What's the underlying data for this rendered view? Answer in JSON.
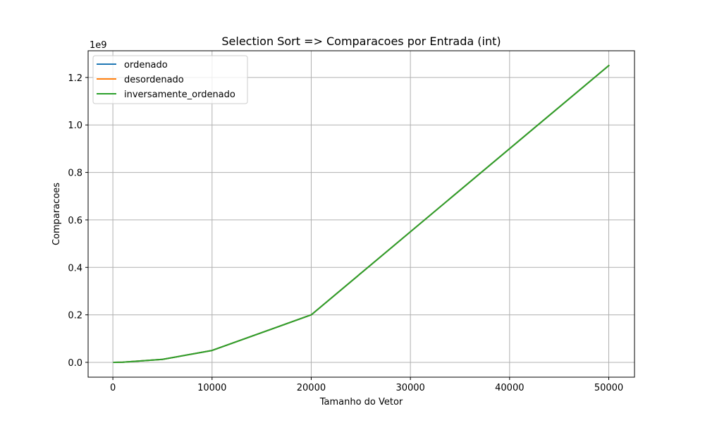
{
  "chart_data": {
    "type": "line",
    "title": "Selection Sort => Comparacoes por Entrada (int)",
    "xlabel": "Tamanho do Vetor",
    "ylabel": "Comparacoes",
    "y_offset_label": "1e9",
    "y_scale_factor": 1000000000,
    "x": [
      100,
      1000,
      5000,
      10000,
      20000,
      50000
    ],
    "xlim": [
      -2495,
      52595
    ],
    "ylim": [
      -0.0625,
      1.3125
    ],
    "x_ticks": [
      0,
      10000,
      20000,
      30000,
      40000,
      50000
    ],
    "x_tick_labels": [
      "0",
      "10000",
      "20000",
      "30000",
      "40000",
      "50000"
    ],
    "y_ticks": [
      0.0,
      0.2,
      0.4,
      0.6,
      0.8,
      1.0,
      1.2
    ],
    "y_tick_labels": [
      "0.0",
      "0.2",
      "0.4",
      "0.6",
      "0.8",
      "1.0",
      "1.2"
    ],
    "grid": true,
    "legend_position": "upper-left",
    "series": [
      {
        "name": "ordenado",
        "color": "#1f77b4",
        "values": [
          4.95e-06,
          0.0004995,
          0.0124975,
          0.049995,
          0.19999,
          1.249975
        ]
      },
      {
        "name": "desordenado",
        "color": "#ff7f0e",
        "values": [
          4.95e-06,
          0.0004995,
          0.0124975,
          0.049995,
          0.19999,
          1.249975
        ]
      },
      {
        "name": "inversamente_ordenado",
        "color": "#2ca02c",
        "values": [
          4.95e-06,
          0.0004995,
          0.0124975,
          0.049995,
          0.19999,
          1.249975
        ]
      }
    ]
  }
}
